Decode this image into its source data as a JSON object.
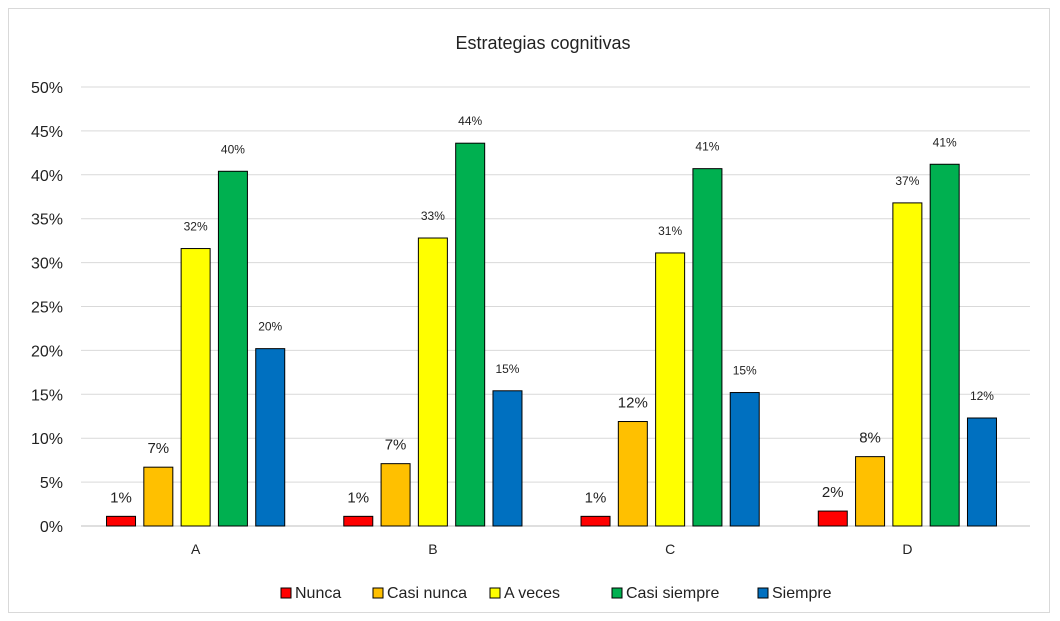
{
  "chart_data": {
    "type": "bar",
    "title": "Estrategias cognitivas",
    "categories": [
      "A",
      "B",
      "C",
      "D"
    ],
    "ylim": [
      0,
      0.5
    ],
    "yticks": [
      "0%",
      "5%",
      "10%",
      "15%",
      "20%",
      "25%",
      "30%",
      "35%",
      "40%",
      "45%",
      "50%"
    ],
    "grid": true,
    "legend_position": "bottom",
    "series": [
      {
        "name": "Nunca",
        "color": "#ff0000",
        "values": [
          0.011,
          0.011,
          0.011,
          0.017
        ],
        "labels": [
          "1%",
          "1%",
          "1%",
          "2%"
        ]
      },
      {
        "name": "Casi nunca",
        "color": "#ffc000",
        "values": [
          0.067,
          0.071,
          0.119,
          0.079
        ],
        "labels": [
          "7%",
          "7%",
          "12%",
          "8%"
        ]
      },
      {
        "name": "A veces",
        "color": "#ffff00",
        "values": [
          0.316,
          0.328,
          0.311,
          0.368
        ],
        "labels": [
          "32%",
          "33%",
          "31%",
          "37%"
        ]
      },
      {
        "name": "Casi siempre",
        "color": "#00b050",
        "values": [
          0.404,
          0.436,
          0.407,
          0.412
        ],
        "labels": [
          "40%",
          "44%",
          "41%",
          "41%"
        ]
      },
      {
        "name": "Siempre",
        "color": "#0070c0",
        "values": [
          0.202,
          0.154,
          0.152,
          0.123
        ],
        "labels": [
          "20%",
          "15%",
          "15%",
          "12%"
        ]
      }
    ]
  }
}
